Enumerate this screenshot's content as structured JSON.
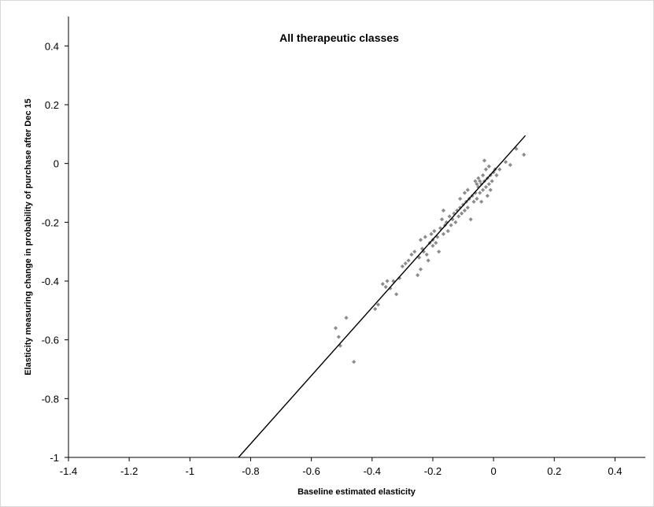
{
  "chart_data": {
    "type": "scatter",
    "title": "All therapeutic classes",
    "xlabel": "Baseline estimated elasticity",
    "ylabel": "Elasticity measuring change in probability of purchase after Dec 15",
    "xlim": [
      -1.4,
      0.5
    ],
    "ylim": [
      -1,
      0.5
    ],
    "x_ticks": [
      -1.4,
      -1.2,
      -1,
      -0.8,
      -0.6,
      -0.4,
      -0.2,
      0,
      0.2,
      0.4
    ],
    "y_ticks": [
      -1,
      -0.8,
      -0.6,
      -0.4,
      -0.2,
      0,
      0.2,
      0.4
    ],
    "x_tick_labels": [
      "-1.4",
      "-1.2",
      "-1",
      "-0.8",
      "-0.6",
      "-0.4",
      "-0.2",
      "0",
      "0.2",
      "0.4"
    ],
    "y_tick_labels": [
      "-1",
      "-0.8",
      "-0.6",
      "-0.4",
      "-0.2",
      "0",
      "0.2",
      "0.4"
    ],
    "grid": false,
    "legend": "none",
    "colors": {
      "points": "#8c8c8c",
      "line": "#000000",
      "axis": "#000000"
    },
    "fit_line": {
      "x": [
        -0.84,
        0.105
      ],
      "y": [
        -1.0,
        0.095
      ]
    },
    "points": [
      {
        "x": -0.52,
        "y": -0.56
      },
      {
        "x": -0.51,
        "y": -0.59
      },
      {
        "x": -0.505,
        "y": -0.62
      },
      {
        "x": -0.485,
        "y": -0.525
      },
      {
        "x": -0.46,
        "y": -0.675
      },
      {
        "x": -0.39,
        "y": -0.495
      },
      {
        "x": -0.38,
        "y": -0.48
      },
      {
        "x": -0.365,
        "y": -0.41
      },
      {
        "x": -0.355,
        "y": -0.42
      },
      {
        "x": -0.35,
        "y": -0.4
      },
      {
        "x": -0.34,
        "y": -0.425
      },
      {
        "x": -0.33,
        "y": -0.4
      },
      {
        "x": -0.32,
        "y": -0.445
      },
      {
        "x": -0.31,
        "y": -0.39
      },
      {
        "x": -0.3,
        "y": -0.35
      },
      {
        "x": -0.29,
        "y": -0.34
      },
      {
        "x": -0.28,
        "y": -0.33
      },
      {
        "x": -0.27,
        "y": -0.31
      },
      {
        "x": -0.26,
        "y": -0.3
      },
      {
        "x": -0.25,
        "y": -0.38
      },
      {
        "x": -0.245,
        "y": -0.32
      },
      {
        "x": -0.24,
        "y": -0.36
      },
      {
        "x": -0.235,
        "y": -0.29
      },
      {
        "x": -0.23,
        "y": -0.3
      },
      {
        "x": -0.225,
        "y": -0.25
      },
      {
        "x": -0.22,
        "y": -0.31
      },
      {
        "x": -0.215,
        "y": -0.33
      },
      {
        "x": -0.21,
        "y": -0.27
      },
      {
        "x": -0.205,
        "y": -0.24
      },
      {
        "x": -0.2,
        "y": -0.28
      },
      {
        "x": -0.195,
        "y": -0.23
      },
      {
        "x": -0.19,
        "y": -0.27
      },
      {
        "x": -0.185,
        "y": -0.25
      },
      {
        "x": -0.18,
        "y": -0.3
      },
      {
        "x": -0.175,
        "y": -0.22
      },
      {
        "x": -0.17,
        "y": -0.19
      },
      {
        "x": -0.165,
        "y": -0.24
      },
      {
        "x": -0.16,
        "y": -0.21
      },
      {
        "x": -0.155,
        "y": -0.2
      },
      {
        "x": -0.15,
        "y": -0.23
      },
      {
        "x": -0.145,
        "y": -0.18
      },
      {
        "x": -0.14,
        "y": -0.21
      },
      {
        "x": -0.135,
        "y": -0.19
      },
      {
        "x": -0.13,
        "y": -0.17
      },
      {
        "x": -0.125,
        "y": -0.2
      },
      {
        "x": -0.12,
        "y": -0.16
      },
      {
        "x": -0.115,
        "y": -0.18
      },
      {
        "x": -0.11,
        "y": -0.15
      },
      {
        "x": -0.105,
        "y": -0.17
      },
      {
        "x": -0.1,
        "y": -0.14
      },
      {
        "x": -0.095,
        "y": -0.16
      },
      {
        "x": -0.09,
        "y": -0.13
      },
      {
        "x": -0.085,
        "y": -0.15
      },
      {
        "x": -0.08,
        "y": -0.12
      },
      {
        "x": -0.075,
        "y": -0.19
      },
      {
        "x": -0.07,
        "y": -0.11
      },
      {
        "x": -0.065,
        "y": -0.13
      },
      {
        "x": -0.06,
        "y": -0.1
      },
      {
        "x": -0.055,
        "y": -0.12
      },
      {
        "x": -0.05,
        "y": -0.08
      },
      {
        "x": -0.045,
        "y": -0.1
      },
      {
        "x": -0.04,
        "y": -0.07
      },
      {
        "x": -0.035,
        "y": -0.09
      },
      {
        "x": -0.03,
        "y": -0.06
      },
      {
        "x": -0.025,
        "y": -0.08
      },
      {
        "x": -0.02,
        "y": -0.05
      },
      {
        "x": -0.015,
        "y": -0.07
      },
      {
        "x": -0.01,
        "y": -0.04
      },
      {
        "x": -0.005,
        "y": -0.06
      },
      {
        "x": 0.0,
        "y": -0.03
      },
      {
        "x": -0.06,
        "y": -0.06
      },
      {
        "x": -0.055,
        "y": -0.07
      },
      {
        "x": -0.05,
        "y": -0.05
      },
      {
        "x": -0.045,
        "y": -0.06
      },
      {
        "x": -0.04,
        "y": -0.13
      },
      {
        "x": -0.035,
        "y": -0.04
      },
      {
        "x": -0.03,
        "y": 0.01
      },
      {
        "x": -0.025,
        "y": -0.02
      },
      {
        "x": -0.02,
        "y": -0.11
      },
      {
        "x": -0.015,
        "y": -0.01
      },
      {
        "x": -0.01,
        "y": -0.09
      },
      {
        "x": 0.005,
        "y": -0.02
      },
      {
        "x": 0.01,
        "y": -0.04
      },
      {
        "x": 0.02,
        "y": -0.02
      },
      {
        "x": 0.04,
        "y": 0.005
      },
      {
        "x": 0.055,
        "y": -0.005
      },
      {
        "x": 0.075,
        "y": 0.05
      },
      {
        "x": 0.1,
        "y": 0.03
      },
      {
        "x": -0.11,
        "y": -0.12
      },
      {
        "x": -0.095,
        "y": -0.1
      },
      {
        "x": -0.085,
        "y": -0.09
      },
      {
        "x": -0.165,
        "y": -0.16
      },
      {
        "x": -0.2,
        "y": -0.26
      },
      {
        "x": -0.24,
        "y": -0.26
      }
    ]
  }
}
